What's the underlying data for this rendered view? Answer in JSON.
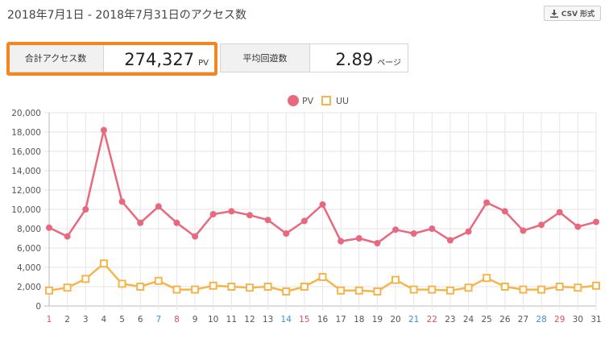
{
  "header": {
    "period_title": "2018年7月1日 - 2018年7月31日のアクセス数",
    "csv_button_label": "CSV 形式",
    "csv_icon": "download-icon"
  },
  "stats": {
    "total": {
      "label": "合計アクセス数",
      "value": "274,327",
      "unit": "PV"
    },
    "average": {
      "label": "平均回遊数",
      "value": "2.89",
      "unit": "ページ"
    }
  },
  "colors": {
    "pv": "#e8697d",
    "uu": "#f5b54c",
    "highlight": "#f4861f",
    "sunday": "#e0505f",
    "saturday": "#3d8fd6"
  },
  "chart_data": {
    "type": "line",
    "legend_position": "top-center",
    "grid": true,
    "ylim": [
      0,
      20000
    ],
    "y_ticks": [
      "0",
      "2,000",
      "4,000",
      "6,000",
      "8,000",
      "10,000",
      "12,000",
      "14,000",
      "16,000",
      "18,000",
      "20,000"
    ],
    "categories": [
      "1",
      "2",
      "3",
      "4",
      "5",
      "6",
      "7",
      "8",
      "9",
      "10",
      "11",
      "12",
      "13",
      "14",
      "15",
      "16",
      "17",
      "18",
      "19",
      "20",
      "21",
      "22",
      "23",
      "24",
      "25",
      "26",
      "27",
      "28",
      "29",
      "30",
      "31"
    ],
    "category_colors": [
      "#e0505f",
      "#555555",
      "#555555",
      "#555555",
      "#555555",
      "#555555",
      "#3d8fd6",
      "#e0505f",
      "#555555",
      "#555555",
      "#555555",
      "#555555",
      "#555555",
      "#3d8fd6",
      "#e0505f",
      "#555555",
      "#555555",
      "#555555",
      "#555555",
      "#555555",
      "#3d8fd6",
      "#e0505f",
      "#555555",
      "#555555",
      "#555555",
      "#555555",
      "#555555",
      "#3d8fd6",
      "#e0505f",
      "#555555",
      "#555555"
    ],
    "series": [
      {
        "name": "PV",
        "marker": "circle",
        "color": "#e8697d",
        "values": [
          8100,
          7200,
          10000,
          18200,
          10800,
          8600,
          10300,
          8600,
          7200,
          9500,
          9800,
          9400,
          8900,
          7500,
          8800,
          10500,
          6700,
          7000,
          6500,
          7900,
          7500,
          8000,
          6800,
          7700,
          10700,
          9800,
          7800,
          8400,
          9700,
          8200,
          8700
        ]
      },
      {
        "name": "UU",
        "marker": "square",
        "color": "#f5b54c",
        "values": [
          1600,
          1900,
          2800,
          4400,
          2300,
          2000,
          2600,
          1700,
          1700,
          2100,
          2000,
          1900,
          2000,
          1500,
          2000,
          3000,
          1600,
          1600,
          1500,
          2700,
          1700,
          1700,
          1600,
          1900,
          2900,
          2000,
          1700,
          1700,
          2000,
          1900,
          2100
        ]
      }
    ]
  }
}
